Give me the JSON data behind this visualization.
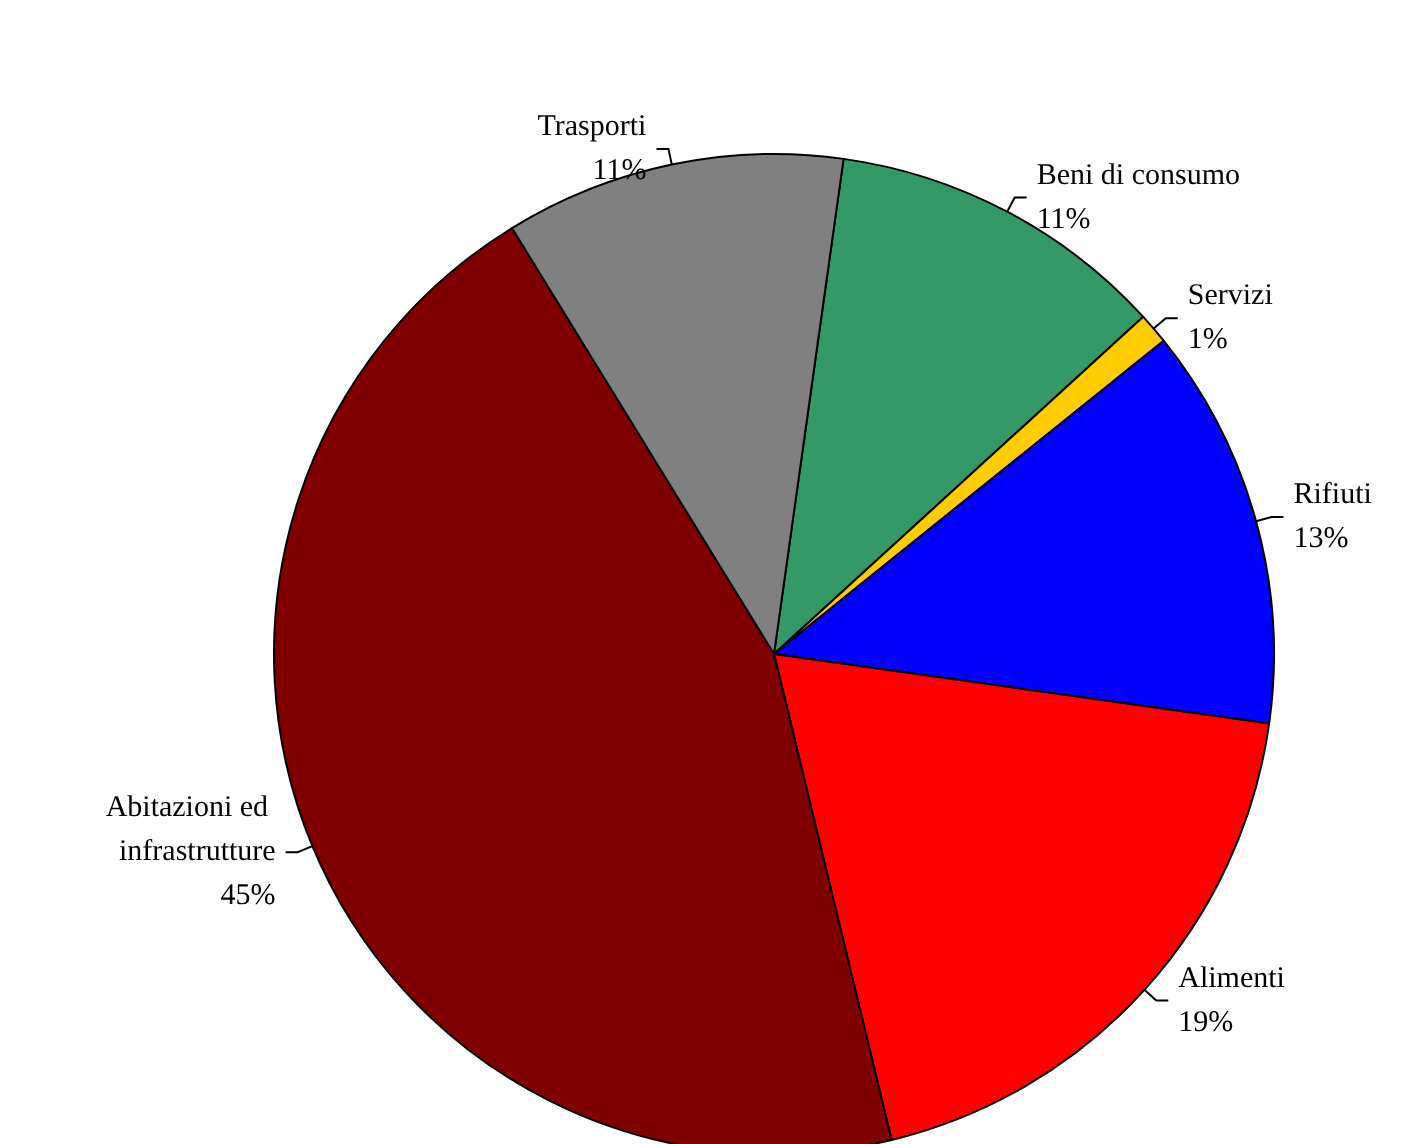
{
  "chart_data": {
    "type": "pie",
    "categories": [
      "Beni di consumo",
      "Servizi",
      "Rifiuti",
      "Alimenti",
      "Abitazioni ed infrastrutture",
      "Trasporti"
    ],
    "values": [
      11,
      1,
      13,
      19,
      45,
      11
    ],
    "value_labels": [
      "11%",
      "1%",
      "13%",
      "19%",
      "45%",
      "11%"
    ],
    "colors": [
      "#339966",
      "#ffcc00",
      "#0000ff",
      "#ff0000",
      "#800000",
      "#808080"
    ],
    "legend": false
  }
}
